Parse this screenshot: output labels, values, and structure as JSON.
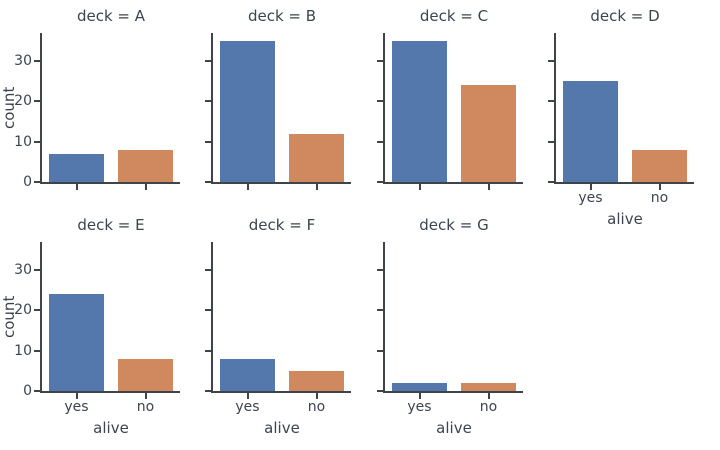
{
  "chart_data": {
    "type": "bar",
    "description": "Faceted countplot of alive (yes/no) per deck",
    "facet_variable": "deck",
    "categories": [
      "yes",
      "no"
    ],
    "xlabel": "alive",
    "ylabel": "count",
    "yticks": [
      0,
      10,
      20,
      30
    ],
    "ylim": [
      0,
      37
    ],
    "grid": false,
    "legend": "none",
    "bar_colors": [
      "#5578ac",
      "#d0895f"
    ],
    "axis_color": "#3f444b",
    "text_color": "#3d4450",
    "facets": [
      {
        "title": "deck = A",
        "row": 0,
        "col": 0,
        "values": [
          7,
          8
        ],
        "show_x_axis_labels": false,
        "show_y_axis_labels": true
      },
      {
        "title": "deck = B",
        "row": 0,
        "col": 1,
        "values": [
          35,
          12
        ],
        "show_x_axis_labels": false,
        "show_y_axis_labels": false
      },
      {
        "title": "deck = C",
        "row": 0,
        "col": 2,
        "values": [
          35,
          24
        ],
        "show_x_axis_labels": false,
        "show_y_axis_labels": false
      },
      {
        "title": "deck = D",
        "row": 0,
        "col": 3,
        "values": [
          25,
          8
        ],
        "show_x_axis_labels": true,
        "show_y_axis_labels": false
      },
      {
        "title": "deck = E",
        "row": 1,
        "col": 0,
        "values": [
          24,
          8
        ],
        "show_x_axis_labels": true,
        "show_y_axis_labels": true
      },
      {
        "title": "deck = F",
        "row": 1,
        "col": 1,
        "values": [
          8,
          5
        ],
        "show_x_axis_labels": true,
        "show_y_axis_labels": false
      },
      {
        "title": "deck = G",
        "row": 1,
        "col": 2,
        "values": [
          2,
          2
        ],
        "show_x_axis_labels": true,
        "show_y_axis_labels": false
      }
    ]
  }
}
